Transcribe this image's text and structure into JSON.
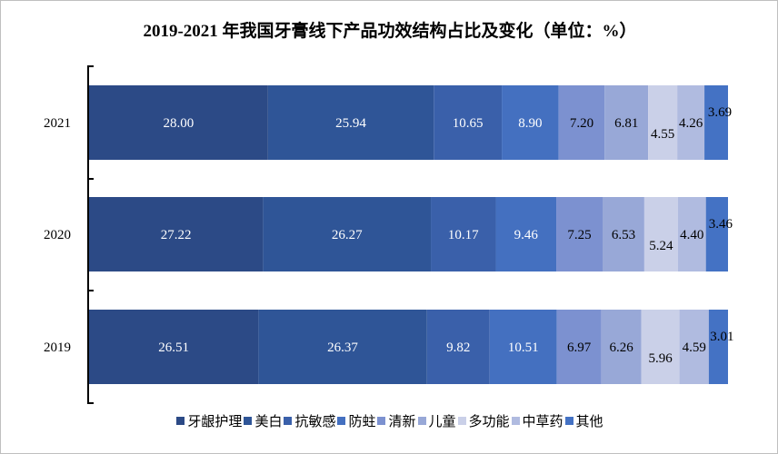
{
  "chart_data": {
    "type": "bar",
    "orientation": "horizontal-stacked-100",
    "title": "2019-2021 年我国牙膏线下产品功效结构占比及变化（单位：%）",
    "categories": [
      "2021",
      "2020",
      "2019"
    ],
    "xlim": [
      0,
      100
    ],
    "grid": false,
    "legend_position": "bottom",
    "series": [
      {
        "name": "牙龈护理",
        "color": "#2C4A86",
        "values": [
          28.0,
          27.22,
          26.51
        ]
      },
      {
        "name": "美白",
        "color": "#2F5597",
        "values": [
          25.94,
          26.27,
          26.37
        ]
      },
      {
        "name": "抗敏感",
        "color": "#3A60AA",
        "values": [
          10.65,
          10.17,
          9.82
        ]
      },
      {
        "name": "防蛀",
        "color": "#4470C0",
        "values": [
          8.9,
          9.46,
          10.51
        ]
      },
      {
        "name": "清新",
        "color": "#7C91D0",
        "values": [
          7.2,
          7.25,
          6.97
        ]
      },
      {
        "name": "儿童",
        "color": "#98A8D7",
        "values": [
          6.81,
          6.53,
          6.26
        ]
      },
      {
        "name": "多功能",
        "color": "#CAD0E8",
        "values": [
          4.55,
          5.24,
          5.96
        ]
      },
      {
        "name": "中草药",
        "color": "#B0BBE0",
        "values": [
          4.26,
          4.4,
          4.59
        ]
      },
      {
        "name": "其他",
        "color": "#4472C4",
        "values": [
          3.69,
          3.46,
          3.01
        ]
      }
    ]
  }
}
